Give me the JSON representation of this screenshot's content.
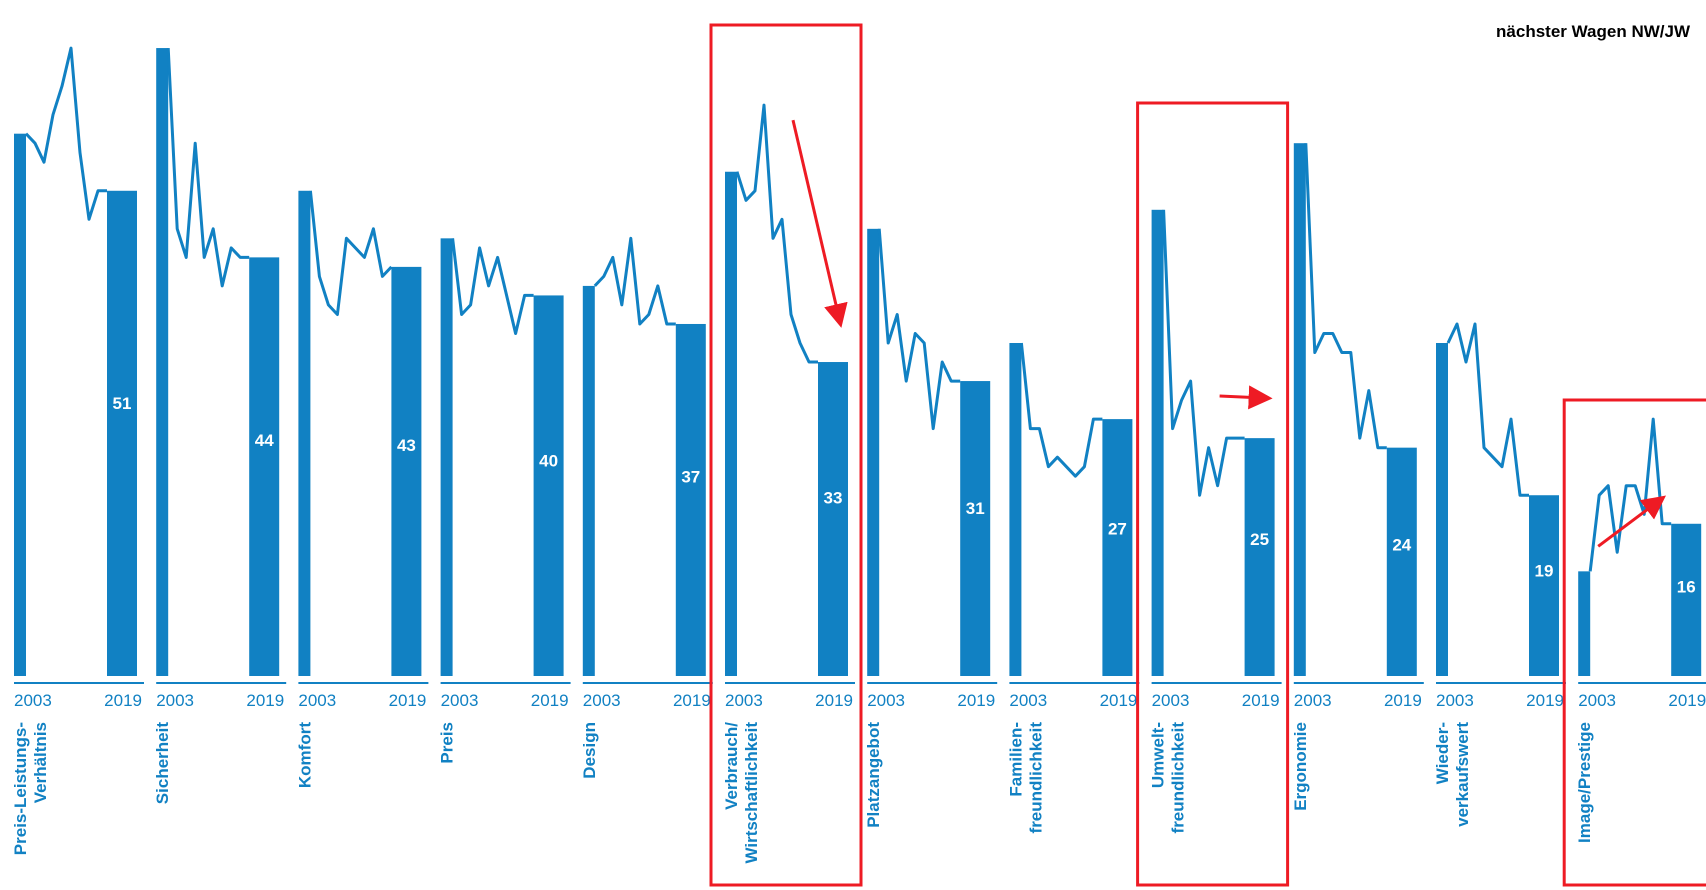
{
  "colors": {
    "primary": "#1181c3",
    "highlight": "#ee1b24",
    "background": "#ffffff"
  },
  "chart_data": {
    "type": "bar",
    "legend": "nächster Wagen NW/JW",
    "year_start": "2003",
    "year_end": "2019",
    "ylim": [
      0,
      70
    ],
    "categories": [
      {
        "label": [
          "Preis-Leistungs-",
          "Verhältnis"
        ],
        "value_2003": 57,
        "value_2019": 51,
        "trend": [
          57,
          56,
          54,
          59,
          62,
          66,
          55,
          48,
          51,
          51
        ],
        "highlight": false
      },
      {
        "label": [
          "Sicherheit"
        ],
        "value_2003": 66,
        "value_2019": 44,
        "trend": [
          66,
          47,
          44,
          56,
          44,
          47,
          41,
          45,
          44,
          44
        ],
        "highlight": false
      },
      {
        "label": [
          "Komfort"
        ],
        "value_2003": 51,
        "value_2019": 43,
        "trend": [
          51,
          42,
          39,
          38,
          46,
          45,
          44,
          47,
          42,
          43
        ],
        "highlight": false
      },
      {
        "label": [
          "Preis"
        ],
        "value_2003": 46,
        "value_2019": 40,
        "trend": [
          46,
          38,
          39,
          45,
          41,
          44,
          40,
          36,
          40,
          40
        ],
        "highlight": false
      },
      {
        "label": [
          "Design"
        ],
        "value_2003": 41,
        "value_2019": 37,
        "trend": [
          41,
          42,
          44,
          39,
          46,
          37,
          38,
          41,
          37,
          37
        ],
        "highlight": false
      },
      {
        "label": [
          "Verbrauch/",
          "Wirtschaftlichkeit"
        ],
        "value_2003": 53,
        "value_2019": 33,
        "trend": [
          53,
          50,
          51,
          60,
          46,
          48,
          38,
          35,
          33,
          33
        ],
        "highlight": true,
        "arrow": "down"
      },
      {
        "label": [
          "Platzangebot"
        ],
        "value_2003": 47,
        "value_2019": 31,
        "trend": [
          47,
          35,
          38,
          31,
          36,
          35,
          26,
          33,
          31,
          31
        ],
        "highlight": false
      },
      {
        "label": [
          "Familien-",
          "freundlichkeit"
        ],
        "value_2003": 35,
        "value_2019": 27,
        "trend": [
          35,
          26,
          26,
          22,
          23,
          22,
          21,
          22,
          27,
          27
        ],
        "highlight": false
      },
      {
        "label": [
          "Umwelt-",
          "freundlichkeit"
        ],
        "value_2003": 49,
        "value_2019": 25,
        "trend": [
          49,
          26,
          29,
          31,
          19,
          24,
          20,
          25,
          25,
          25
        ],
        "highlight": true,
        "arrow": "down"
      },
      {
        "label": [
          "Ergonomie"
        ],
        "value_2003": 56,
        "value_2019": 24,
        "trend": [
          56,
          34,
          36,
          36,
          34,
          34,
          25,
          30,
          24,
          24
        ],
        "highlight": false
      },
      {
        "label": [
          "Wieder-",
          "verkaufswert"
        ],
        "value_2003": 35,
        "value_2019": 19,
        "trend": [
          35,
          37,
          33,
          37,
          24,
          23,
          22,
          27,
          19,
          19
        ],
        "highlight": false
      },
      {
        "label": [
          "Image/Prestige"
        ],
        "value_2003": 11,
        "value_2019": 16,
        "trend": [
          11,
          19,
          20,
          13,
          20,
          20,
          17,
          27,
          16,
          16
        ],
        "highlight": true,
        "arrow": "up"
      }
    ]
  }
}
